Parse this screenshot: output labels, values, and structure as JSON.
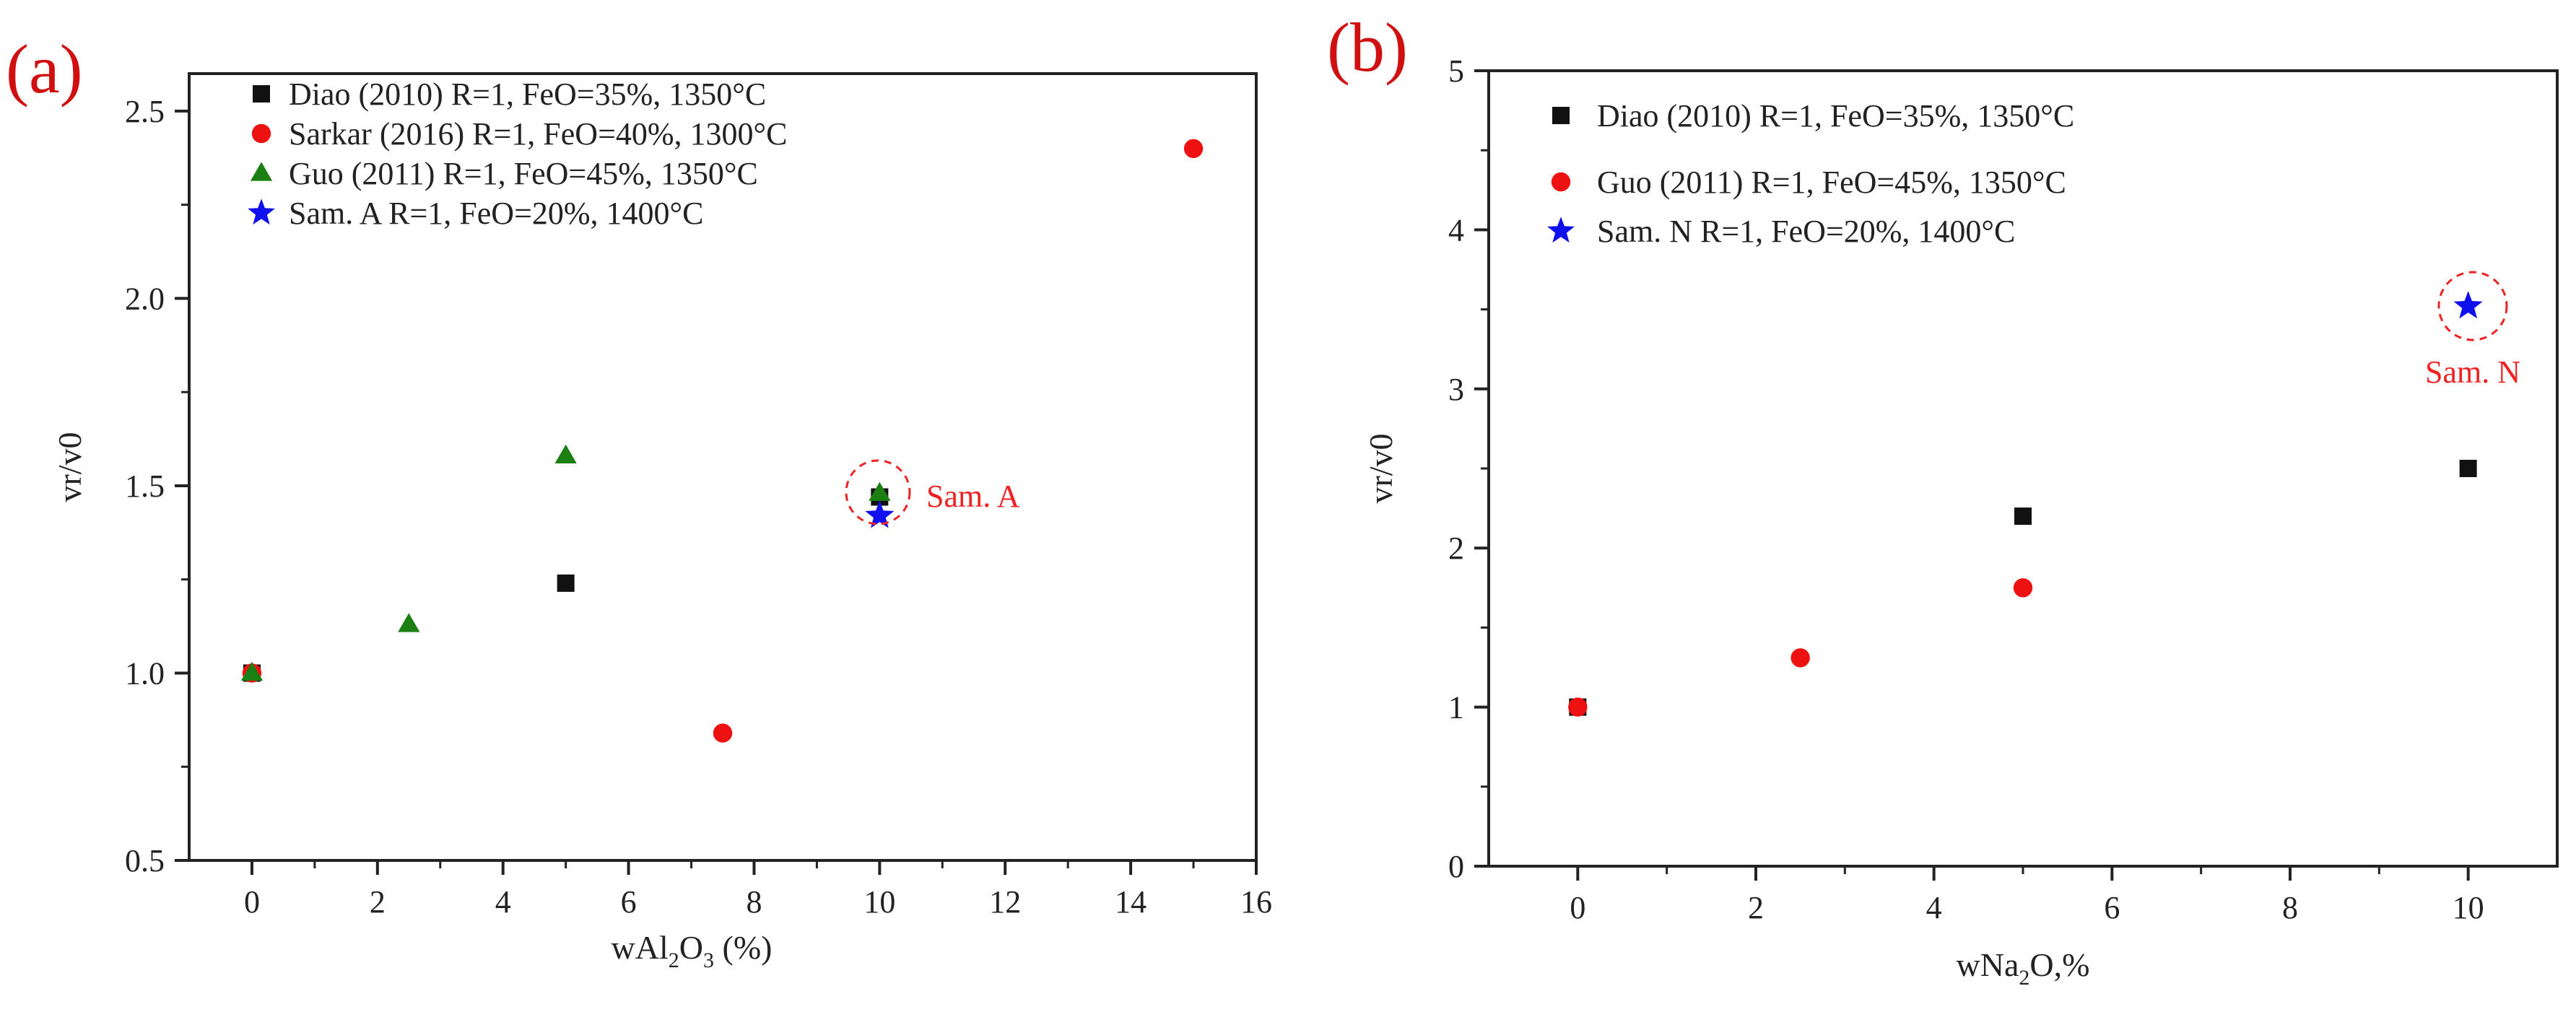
{
  "colors": {
    "black": "#111111",
    "red": "#ee1111",
    "green": "#1b7f12",
    "blue": "#1010ee",
    "panel_label": "#d01010",
    "annotation": "#ee2222"
  },
  "chart_data": [
    {
      "id": "a",
      "type": "scatter",
      "panel_label": "(a)",
      "xlabel_prefix": "wAl",
      "xlabel_sub1": "2",
      "xlabel_mid": "O",
      "xlabel_sub2": "3",
      "xlabel_suffix": " (%)",
      "ylabel": "vr/v0",
      "xlim": [
        -1,
        16
      ],
      "ylim": [
        0.5,
        2.6
      ],
      "xticks": [
        0,
        2,
        4,
        6,
        8,
        10,
        12,
        14,
        16
      ],
      "xtick_labels": [
        "0",
        "2",
        "4",
        "6",
        "8",
        "10",
        "12",
        "14",
        "16"
      ],
      "yticks": [
        0.5,
        1.0,
        1.5,
        2.0,
        2.5
      ],
      "ytick_labels": [
        "0.5",
        "1.0",
        "1.5",
        "2.0",
        "2.5"
      ],
      "series": [
        {
          "name": "Diao (2010)  R=1, FeO=35%, 1350°C",
          "marker": "square",
          "color": "#111111",
          "x": [
            0,
            5,
            10
          ],
          "y": [
            1.0,
            1.24,
            1.47
          ]
        },
        {
          "name": "Sarkar (2016) R=1, FeO=40%, 1300°C",
          "marker": "circle",
          "color": "#ee1111",
          "x": [
            0,
            7.5,
            15
          ],
          "y": [
            1.0,
            0.84,
            2.4
          ]
        },
        {
          "name": "Guo (2011) R=1, FeO=45%, 1350°C",
          "marker": "triangle",
          "color": "#1b7f12",
          "x": [
            0,
            2.5,
            5,
            10
          ],
          "y": [
            1.0,
            1.13,
            1.58,
            1.48
          ]
        },
        {
          "name": "Sam. A  R=1, FeO=20%, 1400°C",
          "marker": "star",
          "color": "#1010ee",
          "x": [
            10
          ],
          "y": [
            1.42
          ]
        }
      ],
      "annotation": {
        "text": "Sam. A",
        "x": 10,
        "y": 1.46
      }
    },
    {
      "id": "b",
      "type": "scatter",
      "panel_label": "(b)",
      "xlabel_prefix": "wNa",
      "xlabel_sub1": "2",
      "xlabel_mid": "O,%",
      "xlabel_sub2": "",
      "xlabel_suffix": "",
      "ylabel": "vr/v0",
      "xlim": [
        -1,
        11
      ],
      "ylim": [
        0,
        5
      ],
      "xticks": [
        0,
        2,
        4,
        6,
        8,
        10
      ],
      "xtick_labels": [
        "0",
        "2",
        "4",
        "6",
        "8",
        "10"
      ],
      "yticks": [
        0,
        1,
        2,
        3,
        4,
        5
      ],
      "ytick_labels": [
        "0",
        "1",
        "2",
        "3",
        "4",
        "5"
      ],
      "series": [
        {
          "name": "Diao (2010) R=1, FeO=35%, 1350°C",
          "marker": "square",
          "color": "#111111",
          "x": [
            0,
            5,
            10
          ],
          "y": [
            1.0,
            2.2,
            2.5
          ]
        },
        {
          "name": "Guo (2011)   R=1, FeO=45%, 1350°C",
          "marker": "circle",
          "color": "#ee1111",
          "x": [
            0,
            2.5,
            5
          ],
          "y": [
            1.0,
            1.31,
            1.75
          ]
        },
        {
          "name": "Sam. N R=1, FeO=20%, 1400°C",
          "marker": "star",
          "color": "#1010ee",
          "x": [
            10
          ],
          "y": [
            3.52
          ]
        }
      ],
      "annotation": {
        "text": "Sam. N",
        "x": 10,
        "y": 3.52
      }
    }
  ]
}
